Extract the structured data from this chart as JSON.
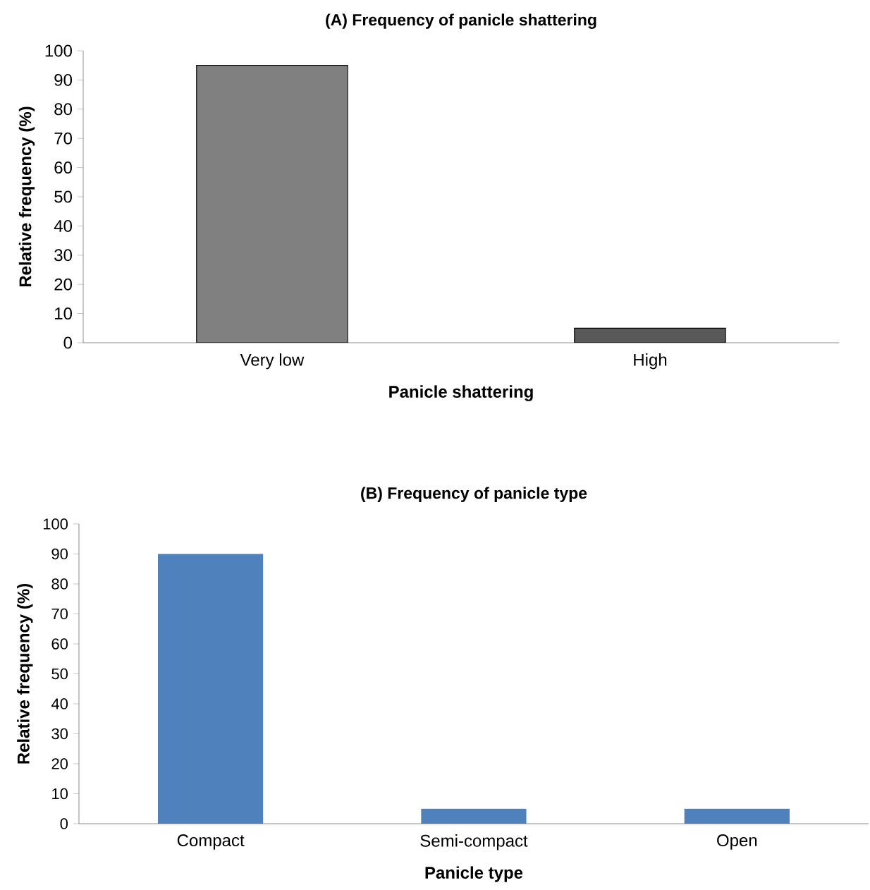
{
  "chart_data": [
    {
      "type": "bar",
      "title": "(A) Frequency of panicle shattering",
      "xlabel": "Panicle shattering",
      "ylabel": "Relative frequency (%)",
      "categories": [
        "Very low",
        "High"
      ],
      "values": [
        95,
        5
      ],
      "colors": [
        "#808080",
        "#595959"
      ],
      "ylim": [
        0,
        100
      ],
      "yticks": [
        0,
        10,
        20,
        30,
        40,
        50,
        60,
        70,
        80,
        90,
        100
      ]
    },
    {
      "type": "bar",
      "title": "(B) Frequency of panicle type",
      "xlabel": "Panicle type",
      "ylabel": "Relative frequency (%)",
      "categories": [
        "Compact",
        "Semi-compact",
        "Open"
      ],
      "values": [
        90,
        5,
        5
      ],
      "colors": [
        "#4f81bd",
        "#4f81bd",
        "#4f81bd"
      ],
      "ylim": [
        0,
        100
      ],
      "yticks": [
        0,
        10,
        20,
        30,
        40,
        50,
        60,
        70,
        80,
        90,
        100
      ]
    }
  ]
}
